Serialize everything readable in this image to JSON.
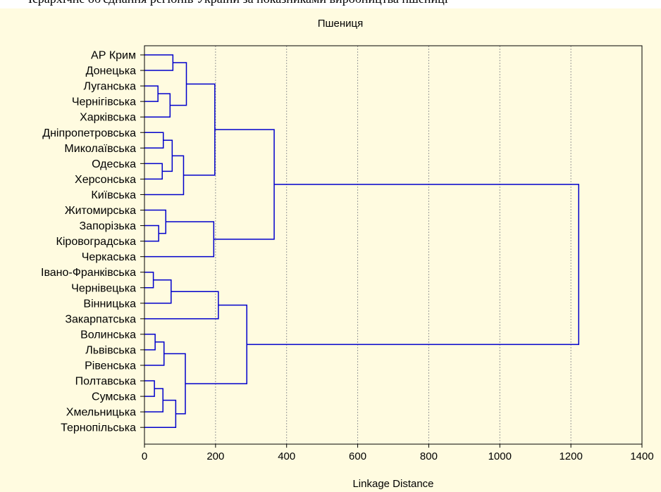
{
  "top_strip_text": "Ієрархічне об'єднання регіонів України за показниками виробництва пшениці",
  "chart_data": {
    "type": "dendrogram",
    "title": "Пшениця",
    "xlabel": "Linkage Distance",
    "xlim": [
      0,
      1400
    ],
    "xticks": [
      0,
      200,
      400,
      600,
      800,
      1000,
      1200,
      1400
    ],
    "grid": "vertical dashed",
    "line_color": "#0000cc",
    "leaves": [
      "АР Крим",
      "Донецька",
      "Луганська",
      "Чернігівська",
      "Харківська",
      "Дніпропетровська",
      "Миколаївська",
      "Одеська",
      "Херсонська",
      "Київська",
      "Житомирська",
      "Запорізька",
      "Кіровоградська",
      "Черкаська",
      "Івано-Франківська",
      "Чернівецька",
      "Вінницька",
      "Закарпатська",
      "Волинська",
      "Львівська",
      "Рівенська",
      "Полтавська",
      "Сумська",
      "Хмельницька",
      "Тернопільська"
    ],
    "merges": [
      {
        "a": "Луганська",
        "b": "Чернігівська",
        "height": 38
      },
      {
        "a": "Луганська",
        "b": "Харківська",
        "height": 72
      },
      {
        "a": "АР Крим",
        "b": "Донецька",
        "height": 80
      },
      {
        "a": "АР Крим",
        "b": "Луганська",
        "height": 118
      },
      {
        "a": "Одеська",
        "b": "Херсонська",
        "height": 50
      },
      {
        "a": "Дніпропетровська",
        "b": "Миколаївська",
        "height": 53
      },
      {
        "a": "Дніпропетровська",
        "b": "Одеська",
        "height": 78
      },
      {
        "a": "Дніпропетровська",
        "b": "Київська",
        "height": 110
      },
      {
        "a": "АР Крим",
        "b": "Дніпропетровська",
        "height": 198
      },
      {
        "a": "Запорізька",
        "b": "Кіровоградська",
        "height": 40
      },
      {
        "a": "Житомирська",
        "b": "Запорізька",
        "height": 60
      },
      {
        "a": "Житомирська",
        "b": "Черкаська",
        "height": 195
      },
      {
        "a": "АР Крим",
        "b": "Житомирська",
        "height": 365
      },
      {
        "a": "Івано-Франківська",
        "b": "Чернівецька",
        "height": 25
      },
      {
        "a": "Івано-Франківська",
        "b": "Вінницька",
        "height": 75
      },
      {
        "a": "Івано-Франківська",
        "b": "Закарпатська",
        "height": 208
      },
      {
        "a": "Волинська",
        "b": "Львівська",
        "height": 30
      },
      {
        "a": "Волинська",
        "b": "Рівенська",
        "height": 55
      },
      {
        "a": "Полтавська",
        "b": "Сумська",
        "height": 28
      },
      {
        "a": "Полтавська",
        "b": "Хмельницька",
        "height": 52
      },
      {
        "a": "Полтавська",
        "b": "Тернопільська",
        "height": 88
      },
      {
        "a": "Волинська",
        "b": "Полтавська",
        "height": 115
      },
      {
        "a": "Івано-Франківська",
        "b": "Волинська",
        "height": 288
      },
      {
        "a": "АР Крим",
        "b": "Івано-Франківська",
        "height": 1222
      }
    ]
  }
}
